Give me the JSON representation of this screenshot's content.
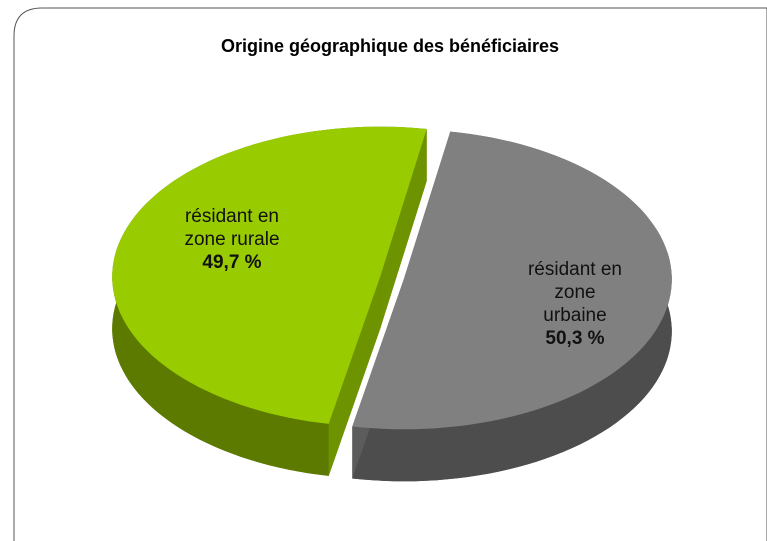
{
  "chart_data": {
    "type": "pie",
    "title": "Origine géographique des bénéficiaires",
    "categories": [
      "résidant en zone rurale",
      "résidant en zone urbaine"
    ],
    "values": [
      49.7,
      50.3
    ],
    "value_labels": [
      "49,7 %",
      "50,3 %"
    ],
    "colors": [
      "#99cc00",
      "#808080"
    ]
  }
}
